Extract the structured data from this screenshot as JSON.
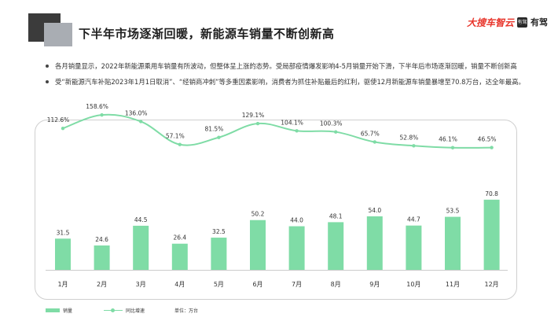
{
  "title": "下半年市场逐渐回暖，新能源车销量不断创新高",
  "logo": {
    "main": "大搜车智云",
    "box": "有驾",
    "sub": "有驾"
  },
  "bullets": [
    "各月销量显示，2022年新能源乘用车销量有所波动，但整体呈上涨的态势。受局部疫情爆发影响4-5月销量开始下滑，下半年后市场逐渐回暖，销量不断创新高",
    "受“新能源汽车补贴2023年1月1日取消”、“经销商冲刺”等多重因素影响，消费者为抓住补贴最后的红利，驱使12月新能源车销量暴增至70.8万台，达全年最高。"
  ],
  "chart_data": {
    "type": "bar",
    "categories": [
      "1月",
      "2月",
      "3月",
      "4月",
      "5月",
      "6月",
      "7月",
      "8月",
      "9月",
      "10月",
      "11月",
      "12月"
    ],
    "series": [
      {
        "name": "销量",
        "type": "bar",
        "values": [
          31.5,
          24.6,
          44.5,
          26.4,
          32.5,
          50.2,
          44.0,
          48.1,
          54.0,
          44.7,
          53.5,
          70.8
        ],
        "labels": [
          "31.5",
          "24.6",
          "44.5",
          "26.4",
          "32.5",
          "50.2",
          "44.0",
          "48.1",
          "54.0",
          "44.7",
          "53.5",
          "70.8"
        ]
      },
      {
        "name": "同比增速",
        "type": "line",
        "values": [
          112.6,
          158.6,
          136.0,
          57.1,
          81.5,
          129.1,
          104.1,
          100.3,
          65.7,
          52.8,
          46.1,
          46.5
        ],
        "labels": [
          "112.6%",
          "158.6%",
          "136.0%",
          "57.1%",
          "81.5%",
          "129.1%",
          "104.1%",
          "100.3%",
          "65.7%",
          "52.8%",
          "46.1%",
          "46.5%"
        ]
      }
    ],
    "unit": "单位：万台",
    "legend_position": "bottom-left",
    "grid": false,
    "colors": {
      "bar": "#7fdca6",
      "line": "#7fdca6"
    }
  }
}
